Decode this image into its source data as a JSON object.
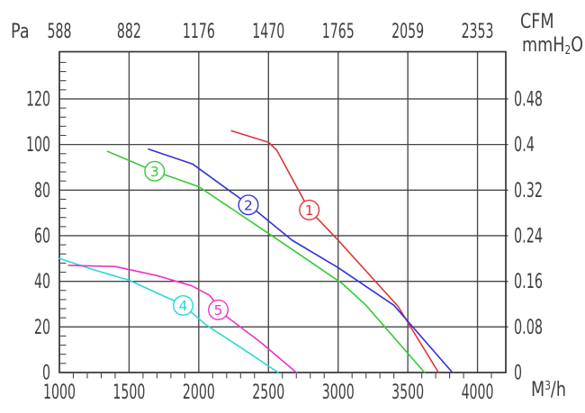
{
  "chart_data": {
    "type": "line",
    "title": "",
    "units": {
      "left": "Pa",
      "top": "CFM",
      "right": {
        "pre": "mmH",
        "sub": "2",
        "post": "O"
      },
      "bottom": {
        "pre": "M",
        "sup": "3",
        "post": "/h"
      }
    },
    "axes": {
      "bottom": {
        "ticks": [
          1000,
          1500,
          2000,
          2500,
          3000,
          3500,
          4000
        ],
        "minor_tick_step": 100,
        "range": [
          1000,
          4203
        ]
      },
      "top": {
        "ticks": [
          "588",
          "882",
          "1176",
          "1470",
          "1765",
          "2059",
          "2353"
        ]
      },
      "left": {
        "ticks": [
          0,
          20,
          40,
          60,
          80,
          100,
          120
        ],
        "minor_tick_step": 4,
        "range": [
          0,
          140.7
        ]
      },
      "right": {
        "ticks": [
          "0",
          "0.08",
          "0.16",
          "0.24",
          "0.32",
          "0.4",
          "0.48"
        ]
      }
    },
    "grid": {
      "line_color": "#474747",
      "frame_color": "#333333",
      "label_color": "#3f3f3f"
    },
    "legend_position": "on-curve-circled-numbers",
    "marker_radius_px": 10.8,
    "series": [
      {
        "label": "1",
        "color": "#e03434",
        "marker_at": [
          2793,
          71.3
        ],
        "points": [
          [
            2235,
            106
          ],
          [
            2500,
            101
          ],
          [
            2560,
            97.5
          ],
          [
            2790,
            71.5
          ],
          [
            3000,
            58
          ],
          [
            3430,
            29
          ],
          [
            3720,
            0
          ]
        ]
      },
      {
        "label": "2",
        "color": "#3232d8",
        "marker_at": [
          2356,
          73.5
        ],
        "points": [
          [
            1640,
            98
          ],
          [
            1955,
            91.5
          ],
          [
            2350,
            74
          ],
          [
            2670,
            58
          ],
          [
            3000,
            46
          ],
          [
            3400,
            29.5
          ],
          [
            3820,
            0
          ]
        ]
      },
      {
        "label": "3",
        "color": "#38c838",
        "marker_at": [
          1683,
          88.3
        ],
        "points": [
          [
            1345,
            97
          ],
          [
            1675,
            88.5
          ],
          [
            2000,
            81.5
          ],
          [
            2500,
            61
          ],
          [
            2670,
            54
          ],
          [
            3030,
            39
          ],
          [
            3200,
            29.5
          ],
          [
            3620,
            0
          ]
        ]
      },
      {
        "label": "4",
        "color": "#26d7e0",
        "marker_at": [
          1888,
          29.4
        ],
        "points": [
          [
            1000,
            50
          ],
          [
            1250,
            45
          ],
          [
            1500,
            40.5
          ],
          [
            1750,
            33.5
          ],
          [
            1880,
            30
          ],
          [
            2050,
            21
          ],
          [
            2300,
            11
          ],
          [
            2570,
            0
          ]
        ]
      },
      {
        "label": "5",
        "color": "#ee32c8",
        "marker_at": [
          2140,
          27.5
        ],
        "points": [
          [
            1065,
            47
          ],
          [
            1400,
            46.5
          ],
          [
            1700,
            42.5
          ],
          [
            1950,
            38
          ],
          [
            2075,
            34
          ],
          [
            2200,
            24.5
          ],
          [
            2450,
            13
          ],
          [
            2700,
            0
          ]
        ]
      }
    ]
  }
}
